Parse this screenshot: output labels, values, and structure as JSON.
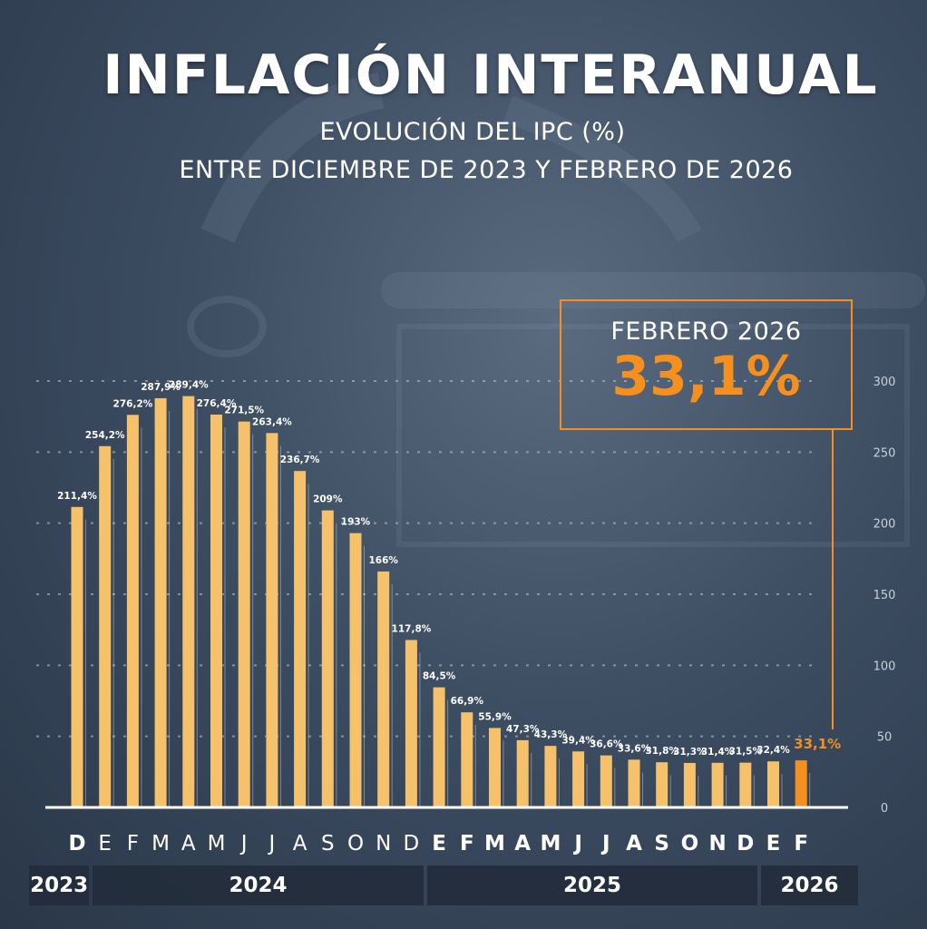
{
  "title": "INFLACIÓN INTERANUAL",
  "subtitle_1": "EVOLUCIÓN DEL IPC (%)",
  "subtitle_2": "ENTRE DICIEMBRE DE 2023 Y FEBRERO DE 2026",
  "callout": {
    "label": "FEBRERO 2026",
    "value": "33,1%"
  },
  "colors": {
    "bar": "#f5c26b",
    "highlight": "#f5901e",
    "text": "#ffffff",
    "grid": "#b8c2cf"
  },
  "chart_data": {
    "type": "bar",
    "categories": [
      "D",
      "E",
      "F",
      "M",
      "A",
      "M",
      "J",
      "J",
      "A",
      "S",
      "O",
      "N",
      "D",
      "E",
      "F",
      "M",
      "A",
      "M",
      "J",
      "J",
      "A",
      "S",
      "O",
      "N",
      "D",
      "E",
      "F"
    ],
    "values": [
      211.4,
      254.2,
      276.2,
      287.9,
      289.4,
      276.4,
      271.5,
      263.4,
      236.7,
      209,
      193,
      166,
      117.8,
      84.5,
      66.9,
      55.9,
      47.3,
      43.3,
      39.4,
      36.6,
      33.6,
      31.8,
      31.3,
      31.4,
      31.5,
      32.4,
      33.1
    ],
    "value_labels": [
      "211,4%",
      "254,2%",
      "276,2%",
      "287,9%",
      "289,4%",
      "276,4%",
      "271,5%",
      "263,4%",
      "236,7%",
      "209%",
      "193%",
      "166%",
      "117,8%",
      "84,5%",
      "66,9%",
      "55,9%",
      "47,3%",
      "43,3%",
      "39,4%",
      "36,6%",
      "33,6%",
      "31,8%",
      "31,3%",
      "31,4%",
      "31,5%",
      "32,4%",
      "33,1%"
    ],
    "bold_categories": [
      0,
      13,
      14,
      15,
      16,
      17,
      18,
      19,
      20,
      21,
      22,
      23,
      24,
      25,
      26
    ],
    "highlight_index": 26,
    "ylim": [
      0,
      300
    ],
    "yticks": [
      0,
      50,
      100,
      150,
      200,
      250,
      300
    ],
    "grid": true,
    "years": [
      {
        "label": "2023",
        "first": 0,
        "last": 0
      },
      {
        "label": "2024",
        "first": 1,
        "last": 12
      },
      {
        "label": "2025",
        "first": 13,
        "last": 24
      },
      {
        "label": "2026",
        "first": 25,
        "last": 26
      }
    ]
  }
}
